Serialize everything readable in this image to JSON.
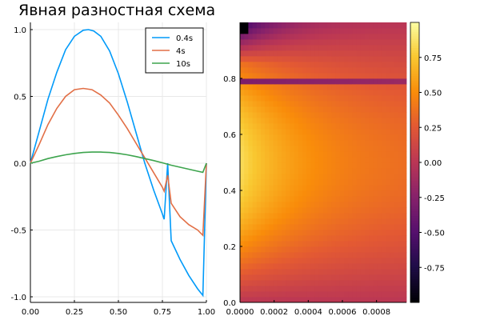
{
  "figure_title": "Явная разностная схема",
  "chart_data": [
    {
      "type": "line",
      "title": "Явная разностная схема",
      "xlabel": "",
      "ylabel": "",
      "xlim": [
        0.0,
        1.0
      ],
      "ylim": [
        -1.0,
        1.0
      ],
      "xticks": [
        "0.00",
        "0.25",
        "0.50",
        "0.75",
        "1.00"
      ],
      "yticks": [
        "1.0",
        "0.5",
        "0.0",
        "-0.5",
        "-1.0"
      ],
      "xtick_values": [
        0.0,
        0.25,
        0.5,
        0.75,
        1.0
      ],
      "ytick_values": [
        1.0,
        0.5,
        0.0,
        -0.5,
        -1.0
      ],
      "grid": true,
      "legend_position": "top-right",
      "series": [
        {
          "name": "0.4s",
          "color": "#009af9",
          "x": [
            0.0,
            0.05,
            0.1,
            0.15,
            0.2,
            0.25,
            0.3,
            0.33,
            0.36,
            0.4,
            0.45,
            0.5,
            0.55,
            0.6,
            0.65,
            0.7,
            0.75,
            0.76,
            0.78,
            0.8,
            0.85,
            0.9,
            0.95,
            0.98,
            1.0
          ],
          "y": [
            0.0,
            0.24,
            0.48,
            0.68,
            0.85,
            0.95,
            0.995,
            1.0,
            0.99,
            0.95,
            0.84,
            0.67,
            0.46,
            0.23,
            0.0,
            -0.2,
            -0.38,
            -0.42,
            0.0,
            -0.58,
            -0.72,
            -0.84,
            -0.94,
            -0.99,
            0.0
          ]
        },
        {
          "name": "4s",
          "color": "#e26f46",
          "x": [
            0.0,
            0.05,
            0.1,
            0.15,
            0.2,
            0.25,
            0.3,
            0.35,
            0.4,
            0.45,
            0.5,
            0.55,
            0.6,
            0.65,
            0.7,
            0.75,
            0.76,
            0.78,
            0.8,
            0.85,
            0.9,
            0.95,
            0.98,
            1.0
          ],
          "y": [
            0.0,
            0.14,
            0.29,
            0.41,
            0.5,
            0.55,
            0.56,
            0.55,
            0.51,
            0.45,
            0.36,
            0.26,
            0.15,
            0.04,
            -0.07,
            -0.18,
            -0.21,
            -0.09,
            -0.3,
            -0.4,
            -0.46,
            -0.5,
            -0.54,
            0.0
          ]
        },
        {
          "name": "10s",
          "color": "#3da44d",
          "x": [
            0.0,
            0.05,
            0.1,
            0.15,
            0.2,
            0.25,
            0.3,
            0.35,
            0.4,
            0.45,
            0.5,
            0.55,
            0.6,
            0.65,
            0.7,
            0.75,
            0.8,
            0.85,
            0.9,
            0.95,
            0.98,
            1.0
          ],
          "y": [
            0.0,
            0.015,
            0.035,
            0.05,
            0.063,
            0.073,
            0.08,
            0.083,
            0.083,
            0.08,
            0.073,
            0.063,
            0.05,
            0.035,
            0.02,
            0.003,
            -0.015,
            -0.03,
            -0.045,
            -0.06,
            -0.068,
            0.0
          ]
        }
      ]
    },
    {
      "type": "heatmap",
      "title": "",
      "xlabel": "",
      "ylabel": "",
      "xlim": [
        0.0,
        0.000975
      ],
      "ylim": [
        0.0,
        1.0
      ],
      "xticks": [
        "0.0000",
        "0.0002",
        "0.0004",
        "0.0006",
        "0.0008"
      ],
      "xtick_values": [
        0.0,
        0.0002,
        0.0004,
        0.0006,
        0.0008
      ],
      "yticks": [
        "0.8",
        "0.6",
        "0.4",
        "0.2",
        "0.0"
      ],
      "ytick_values": [
        0.8,
        0.6,
        0.4,
        0.2,
        0.0
      ],
      "colormap": "inferno",
      "colorbar": {
        "range": [
          -1.0,
          1.0
        ],
        "ticks": [
          "0.75",
          "0.50",
          "0.25",
          "0.00",
          "-0.25",
          "-0.50",
          "-0.75"
        ],
        "tick_values": [
          0.75,
          0.5,
          0.25,
          0.0,
          -0.25,
          -0.5,
          -0.75
        ]
      },
      "grid_cols": 40,
      "grid_rows": 50,
      "description_of_field": "u(t, x) on a grid: t along horizontal axis, x along vertical axis; initial profile sin(3πx/2)-like with peak near x≈0.33, decaying with t; discontinuity band near x≈0.78"
    }
  ]
}
